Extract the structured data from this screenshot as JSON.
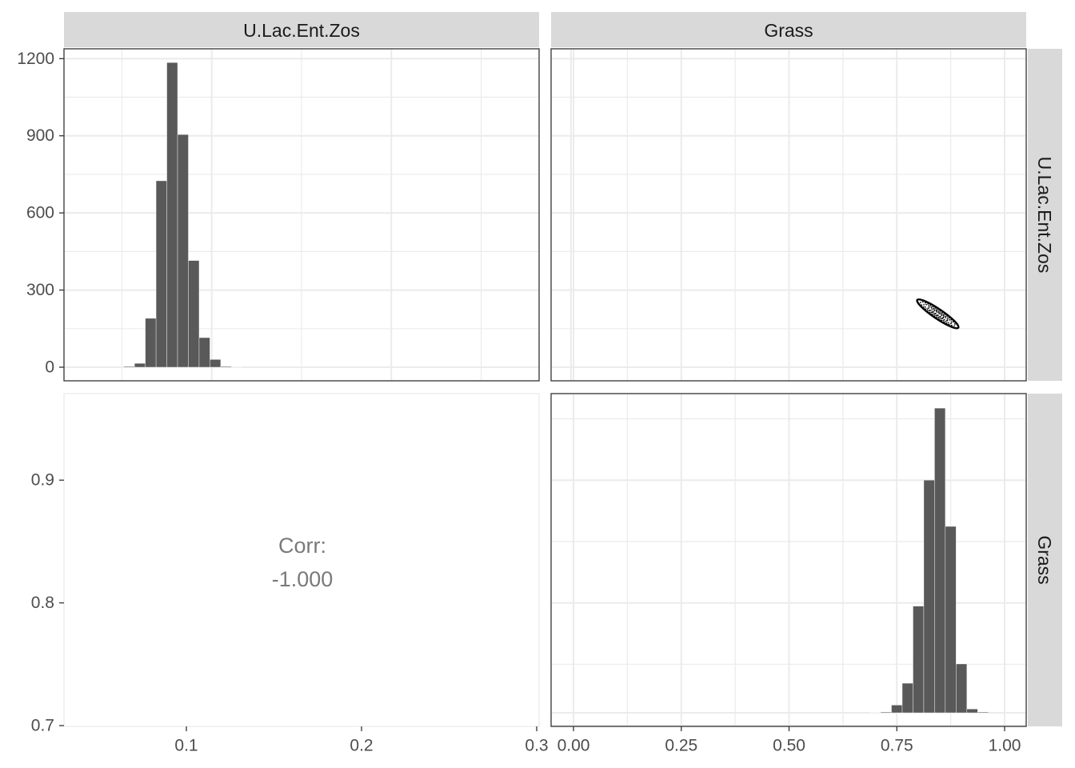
{
  "strips": {
    "col1": "U.Lac.Ent.Zos",
    "col2": "Grass",
    "row1": "U.Lac.Ent.Zos",
    "row2": "Grass"
  },
  "correlation": {
    "label": "Corr:",
    "value": "-1.000"
  },
  "colors": {
    "bar_fill": "#595959",
    "panel_border": "#333333",
    "strip_bg": "#d9d9d9",
    "grid": "#ebebeb",
    "corr_text": "#7a7a7a"
  },
  "chart_data": [
    {
      "type": "bar",
      "panel": "row1-col1",
      "chart_kind": "histogram",
      "x_ticks": [
        "0.1",
        "0.2",
        "0.3"
      ],
      "y_ticks": [
        "0",
        "300",
        "600",
        "900",
        "1200"
      ],
      "xlim": [
        0.03,
        0.3
      ],
      "ylim": [
        -55,
        1240
      ],
      "bin_width": 0.006,
      "bins": [
        {
          "x0": 0.051,
          "count": 3
        },
        {
          "x0": 0.057,
          "count": 15
        },
        {
          "x0": 0.063,
          "count": 190
        },
        {
          "x0": 0.069,
          "count": 725
        },
        {
          "x0": 0.075,
          "count": 1185
        },
        {
          "x0": 0.081,
          "count": 905
        },
        {
          "x0": 0.087,
          "count": 415
        },
        {
          "x0": 0.093,
          "count": 115
        },
        {
          "x0": 0.099,
          "count": 30
        },
        {
          "x0": 0.105,
          "count": 3
        },
        {
          "x0": 0.111,
          "count": 1
        }
      ]
    },
    {
      "type": "scatter",
      "panel": "row1-col2",
      "chart_kind": "density-contour",
      "xlim": [
        -0.05,
        1.05
      ],
      "ylim": [
        0.03,
        0.3
      ],
      "ellipse": {
        "cx": 0.845,
        "cy": 0.082,
        "note": "tight negatively correlated cluster"
      }
    },
    {
      "type": "bar",
      "panel": "row2-col2",
      "chart_kind": "histogram",
      "x_ticks": [
        "0.00",
        "0.25",
        "0.50",
        "0.75",
        "1.00"
      ],
      "y_ticks": [
        "0.7",
        "0.8",
        "0.9"
      ],
      "xlim": [
        -0.05,
        1.05
      ],
      "bin_width": 0.025,
      "bins": [
        {
          "x0": 0.6875,
          "count": 1
        },
        {
          "x0": 0.7125,
          "count": 3
        },
        {
          "x0": 0.7375,
          "count": 30
        },
        {
          "x0": 0.7625,
          "count": 115
        },
        {
          "x0": 0.7875,
          "count": 415
        },
        {
          "x0": 0.8125,
          "count": 905
        },
        {
          "x0": 0.8375,
          "count": 1185
        },
        {
          "x0": 0.8625,
          "count": 725
        },
        {
          "x0": 0.8875,
          "count": 190
        },
        {
          "x0": 0.9125,
          "count": 15
        },
        {
          "x0": 0.9375,
          "count": 3
        }
      ],
      "count_max": 1240
    }
  ]
}
